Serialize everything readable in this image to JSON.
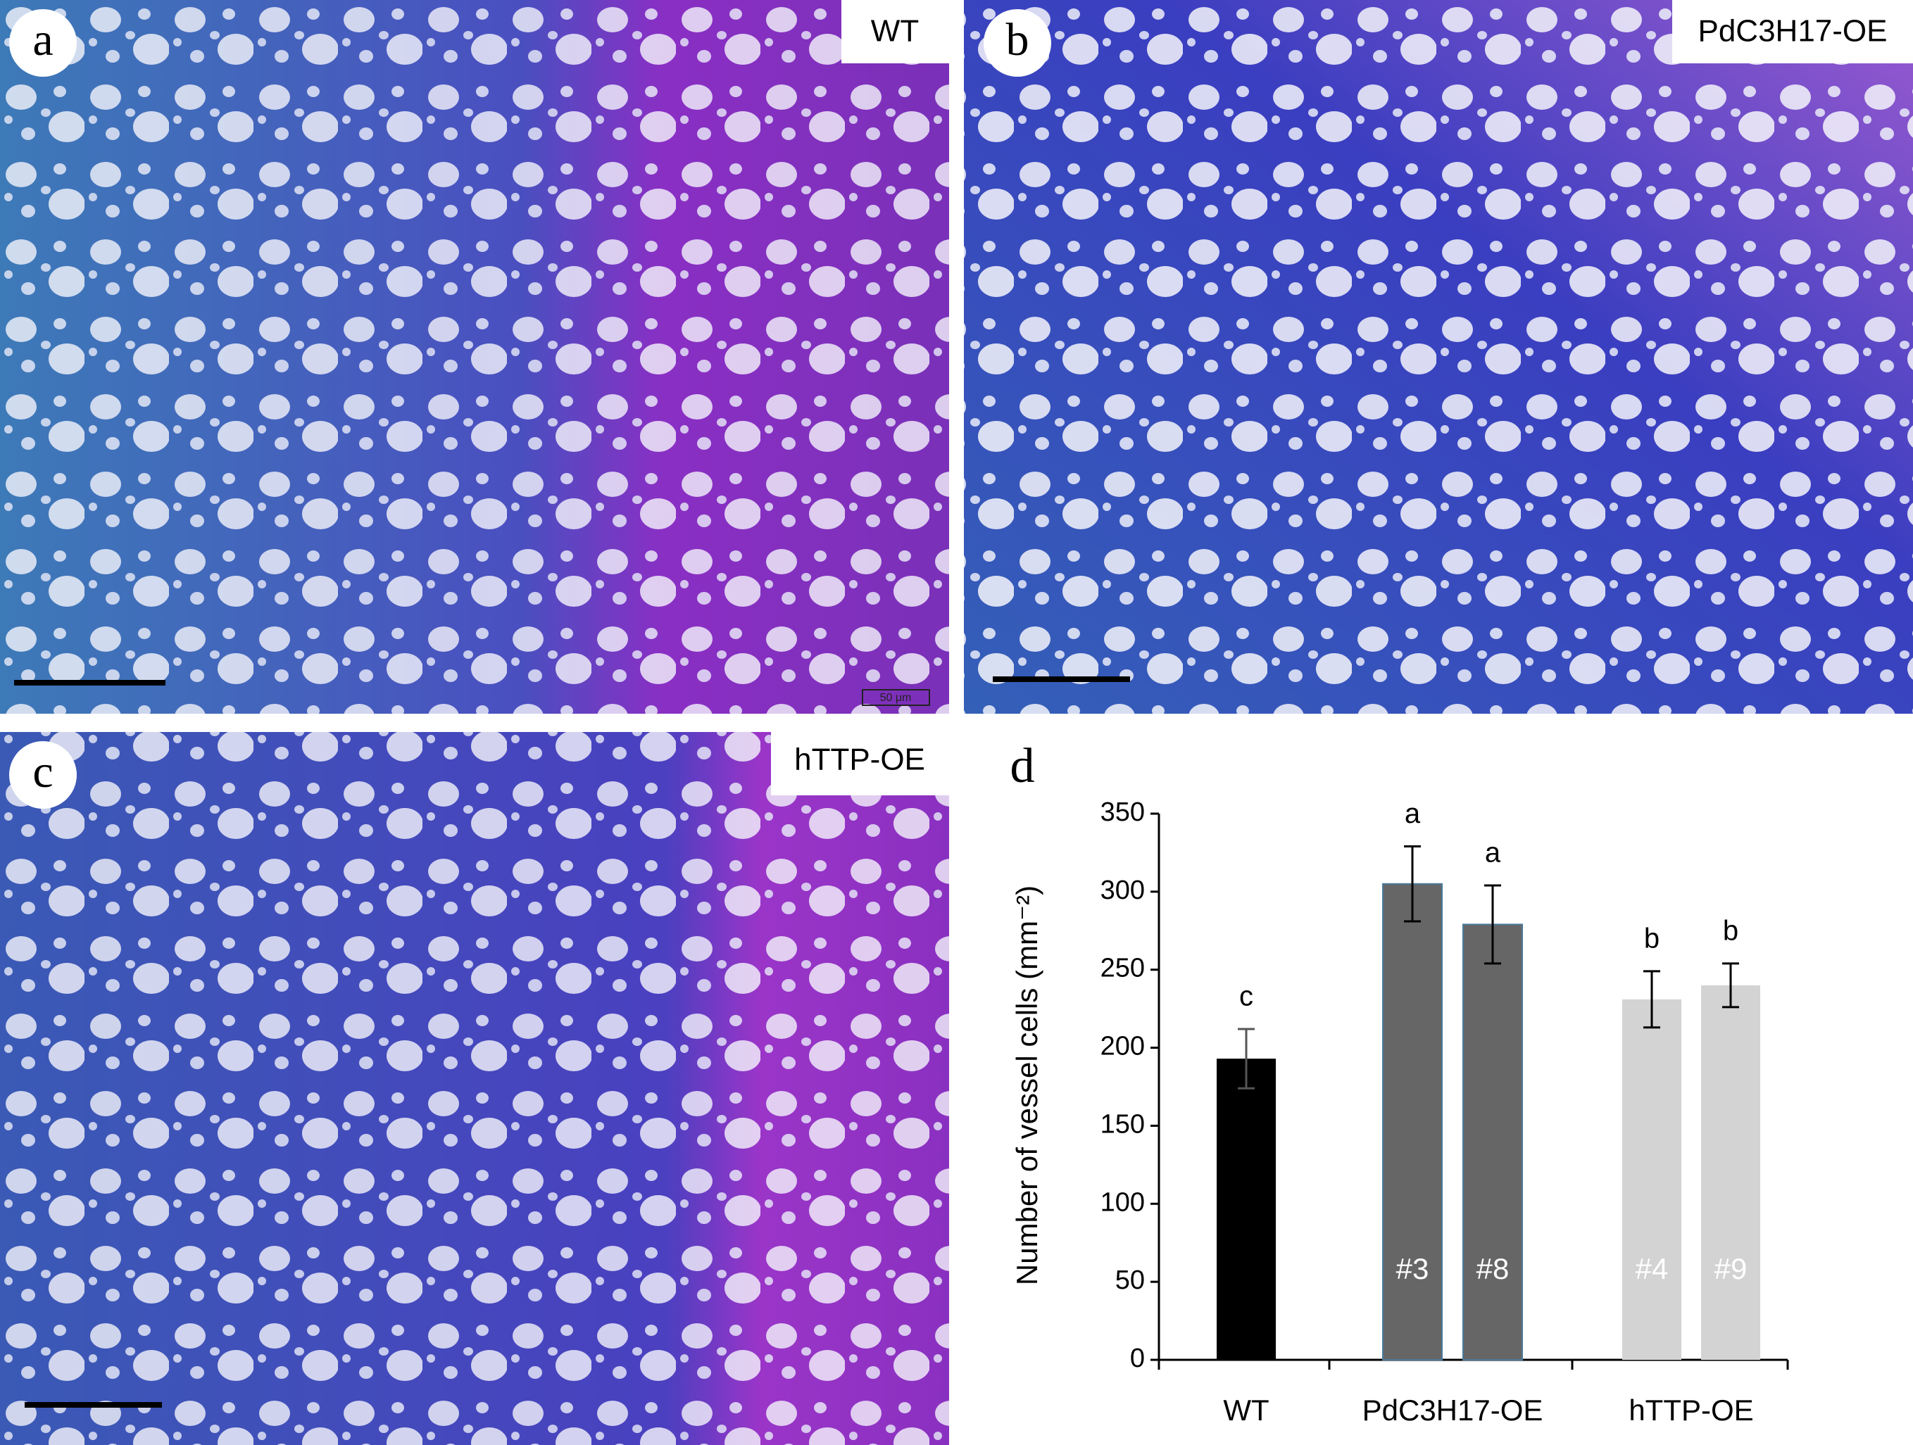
{
  "panels": [
    {
      "letter": "a",
      "label": "WT",
      "scale_text": "50 μm"
    },
    {
      "letter": "b",
      "label": "PdC3H17-OE"
    },
    {
      "letter": "c",
      "label": "hTTP-OE"
    }
  ],
  "chart_letter": "d",
  "chart_data": {
    "type": "bar",
    "ylabel": "Number of vessel cells (mm⁻²)",
    "categories": [
      null,
      "#3",
      "#8",
      "#4",
      "#9"
    ],
    "values": [
      193,
      305,
      279,
      231,
      240
    ],
    "errors": [
      19,
      24,
      25,
      18,
      14
    ],
    "colors": [
      "#000000",
      "#666666",
      "#666666",
      "#d3d3d3",
      "#d3d3d3"
    ],
    "value_annotations": [
      "c",
      "a",
      "a",
      "b",
      "b"
    ],
    "groups": [
      {
        "name": "WT",
        "bars": [
          0
        ]
      },
      {
        "name": "PdC3H17-OE",
        "bars": [
          1,
          2
        ]
      },
      {
        "name": "hTTP-OE",
        "bars": [
          3,
          4
        ]
      }
    ],
    "ylim": [
      0,
      350
    ],
    "yticks": [
      0,
      50,
      100,
      150,
      200,
      250,
      300,
      350
    ],
    "grid": false
  }
}
